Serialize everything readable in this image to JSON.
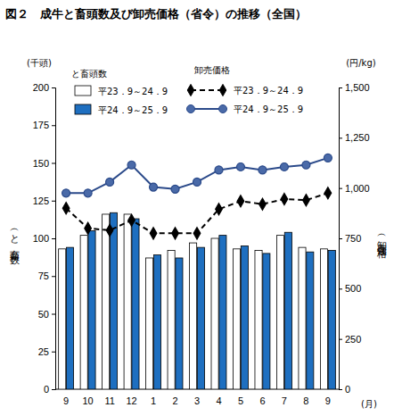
{
  "chart_data": {
    "type": "bar",
    "title": "図２　成牛と畜頭数及び卸売価格（省令）の推移（全国）",
    "y_unit": "(千頭)",
    "y2_unit": "(円/kg)",
    "x_unit": "(月)",
    "ylabel": "（と畜頭数）",
    "y2label": "（卸売価格）",
    "legend_titles": {
      "bars": "と畜頭数",
      "lines": "卸売価格"
    },
    "categories": [
      "9",
      "10",
      "11",
      "12",
      "1",
      "2",
      "3",
      "4",
      "5",
      "6",
      "7",
      "8",
      "9"
    ],
    "series": [
      {
        "name": "平23．9～24．9",
        "type": "bar",
        "color": "#ffffff",
        "values": [
          93,
          102,
          116,
          116,
          87,
          92,
          97,
          100,
          93,
          92,
          102,
          94,
          93
        ]
      },
      {
        "name": "平24．9～25．9",
        "type": "bar",
        "color": "#1e6fc0",
        "values": [
          94,
          105,
          117,
          113,
          89,
          87,
          94,
          102,
          95,
          90,
          104,
          91,
          92
        ]
      },
      {
        "name": "平23．9～24．9",
        "type": "line",
        "axis": "y2",
        "color": "#000000",
        "marker": "diamond",
        "line_style": "dashed",
        "values": [
          900,
          800,
          790,
          840,
          775,
          775,
          775,
          895,
          935,
          920,
          945,
          940,
          975
        ]
      },
      {
        "name": "平24．9～25．9",
        "type": "line",
        "axis": "y2",
        "color": "#2b4a8a",
        "marker": "circle",
        "line_style": "solid",
        "values": [
          975,
          975,
          1030,
          1115,
          1005,
          995,
          1030,
          1090,
          1105,
          1090,
          1105,
          1115,
          1150
        ]
      }
    ],
    "ylim": [
      0,
      200
    ],
    "yticks": [
      0,
      25,
      50,
      75,
      100,
      125,
      150,
      175,
      200
    ],
    "y2lim": [
      0,
      1500
    ],
    "y2ticks": [
      0,
      250,
      500,
      750,
      {
        "value": 1000,
        "label": "1,000"
      },
      {
        "value": 1250,
        "label": "1,250"
      },
      {
        "value": 1500,
        "label": "1,500"
      }
    ],
    "grid": false
  }
}
